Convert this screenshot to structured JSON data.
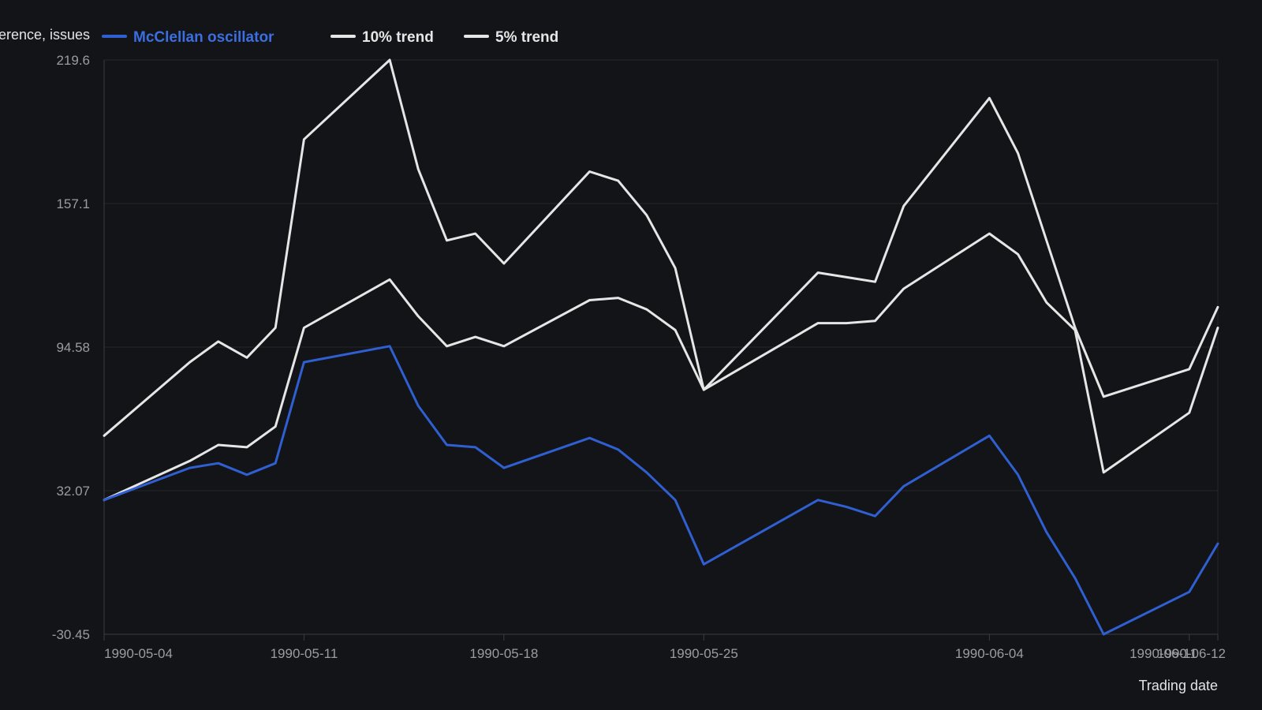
{
  "chart_data": {
    "type": "line",
    "title": "",
    "ylabel": "erence, issues",
    "xlabel": "Trading date",
    "ylim": [
      -30.45,
      219.6
    ],
    "y_ticks": [
      "219.6",
      "157.1",
      "94.58",
      "32.07",
      "-30.45"
    ],
    "x_ticks": [
      "1990-05-04",
      "1990-05-11",
      "1990-05-18",
      "1990-05-25",
      "1990-06-04",
      "1990-06-11",
      "1990-06-12"
    ],
    "x": [
      "1990-05-04",
      "1990-05-07",
      "1990-05-08",
      "1990-05-09",
      "1990-05-10",
      "1990-05-11",
      "1990-05-14",
      "1990-05-15",
      "1990-05-16",
      "1990-05-17",
      "1990-05-18",
      "1990-05-21",
      "1990-05-22",
      "1990-05-23",
      "1990-05-24",
      "1990-05-25",
      "1990-05-29",
      "1990-05-30",
      "1990-05-31",
      "1990-06-01",
      "1990-06-04",
      "1990-06-05",
      "1990-06-06",
      "1990-06-07",
      "1990-06-08",
      "1990-06-11",
      "1990-06-12"
    ],
    "series": [
      {
        "name": "McClellan oscillator",
        "color": "#2f5fd0",
        "values": [
          28,
          42,
          44,
          39,
          44,
          88,
          95,
          69,
          52,
          51,
          42,
          55,
          50,
          40,
          28,
          0,
          28,
          25,
          21,
          34,
          56,
          39,
          14,
          -6,
          -30.45,
          -12,
          9
        ]
      },
      {
        "name": "10% trend",
        "color": "#e6e6e6",
        "values": [
          56,
          88,
          97,
          90,
          103,
          185,
          219.6,
          172,
          141,
          144,
          131,
          171,
          167,
          152,
          129,
          76,
          127,
          125,
          123,
          156,
          203,
          179,
          141,
          103,
          73,
          85,
          112
        ]
      },
      {
        "name": "5% trend",
        "color": "#e6e6e6",
        "values": [
          28,
          45,
          52,
          51,
          60,
          103,
          124,
          108,
          95,
          99,
          95,
          115,
          116,
          111,
          102,
          76,
          105,
          105,
          106,
          120,
          144,
          135,
          114,
          102,
          40,
          66,
          103
        ]
      }
    ],
    "grid": true,
    "legend_position": "top"
  }
}
